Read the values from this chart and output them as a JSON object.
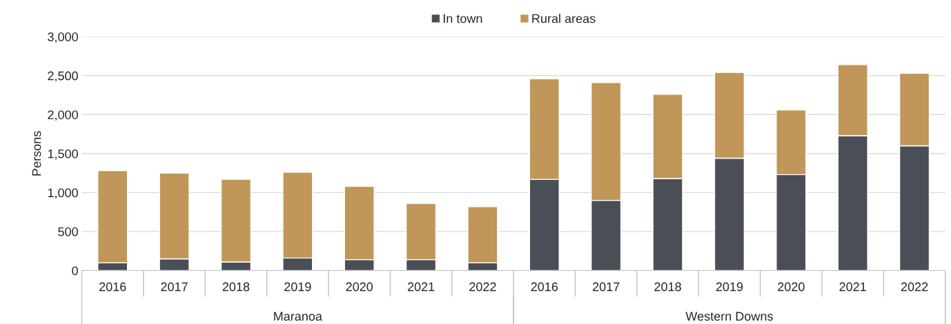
{
  "chart_data": {
    "type": "bar",
    "stacked": true,
    "ylabel": "Persons",
    "categories": [
      "2016",
      "2017",
      "2018",
      "2019",
      "2020",
      "2021",
      "2022",
      "2016",
      "2017",
      "2018",
      "2019",
      "2020",
      "2021",
      "2022"
    ],
    "series": [
      {
        "name": "In town",
        "color": "#4a4f57",
        "values": [
          100,
          150,
          110,
          160,
          140,
          140,
          100,
          1170,
          900,
          1180,
          1440,
          1230,
          1730,
          1600
        ]
      },
      {
        "name": "Rural areas",
        "color": "#c09659",
        "values": [
          1180,
          1100,
          1060,
          1100,
          940,
          720,
          720,
          1290,
          1510,
          1080,
          1100,
          830,
          910,
          930
        ]
      }
    ],
    "ylim": [
      0,
      3000
    ],
    "yticks": [
      {
        "value": 0,
        "label": "0"
      },
      {
        "value": 500,
        "label": "500"
      },
      {
        "value": 1000,
        "label": "1,000"
      },
      {
        "value": 1500,
        "label": "1,500"
      },
      {
        "value": 2000,
        "label": "2,000"
      },
      {
        "value": 2500,
        "label": "2,500"
      },
      {
        "value": 3000,
        "label": "3,000"
      }
    ],
    "grid": "y",
    "legend": "top",
    "annotations": [
      "Maranoa",
      "Western Downs"
    ]
  }
}
